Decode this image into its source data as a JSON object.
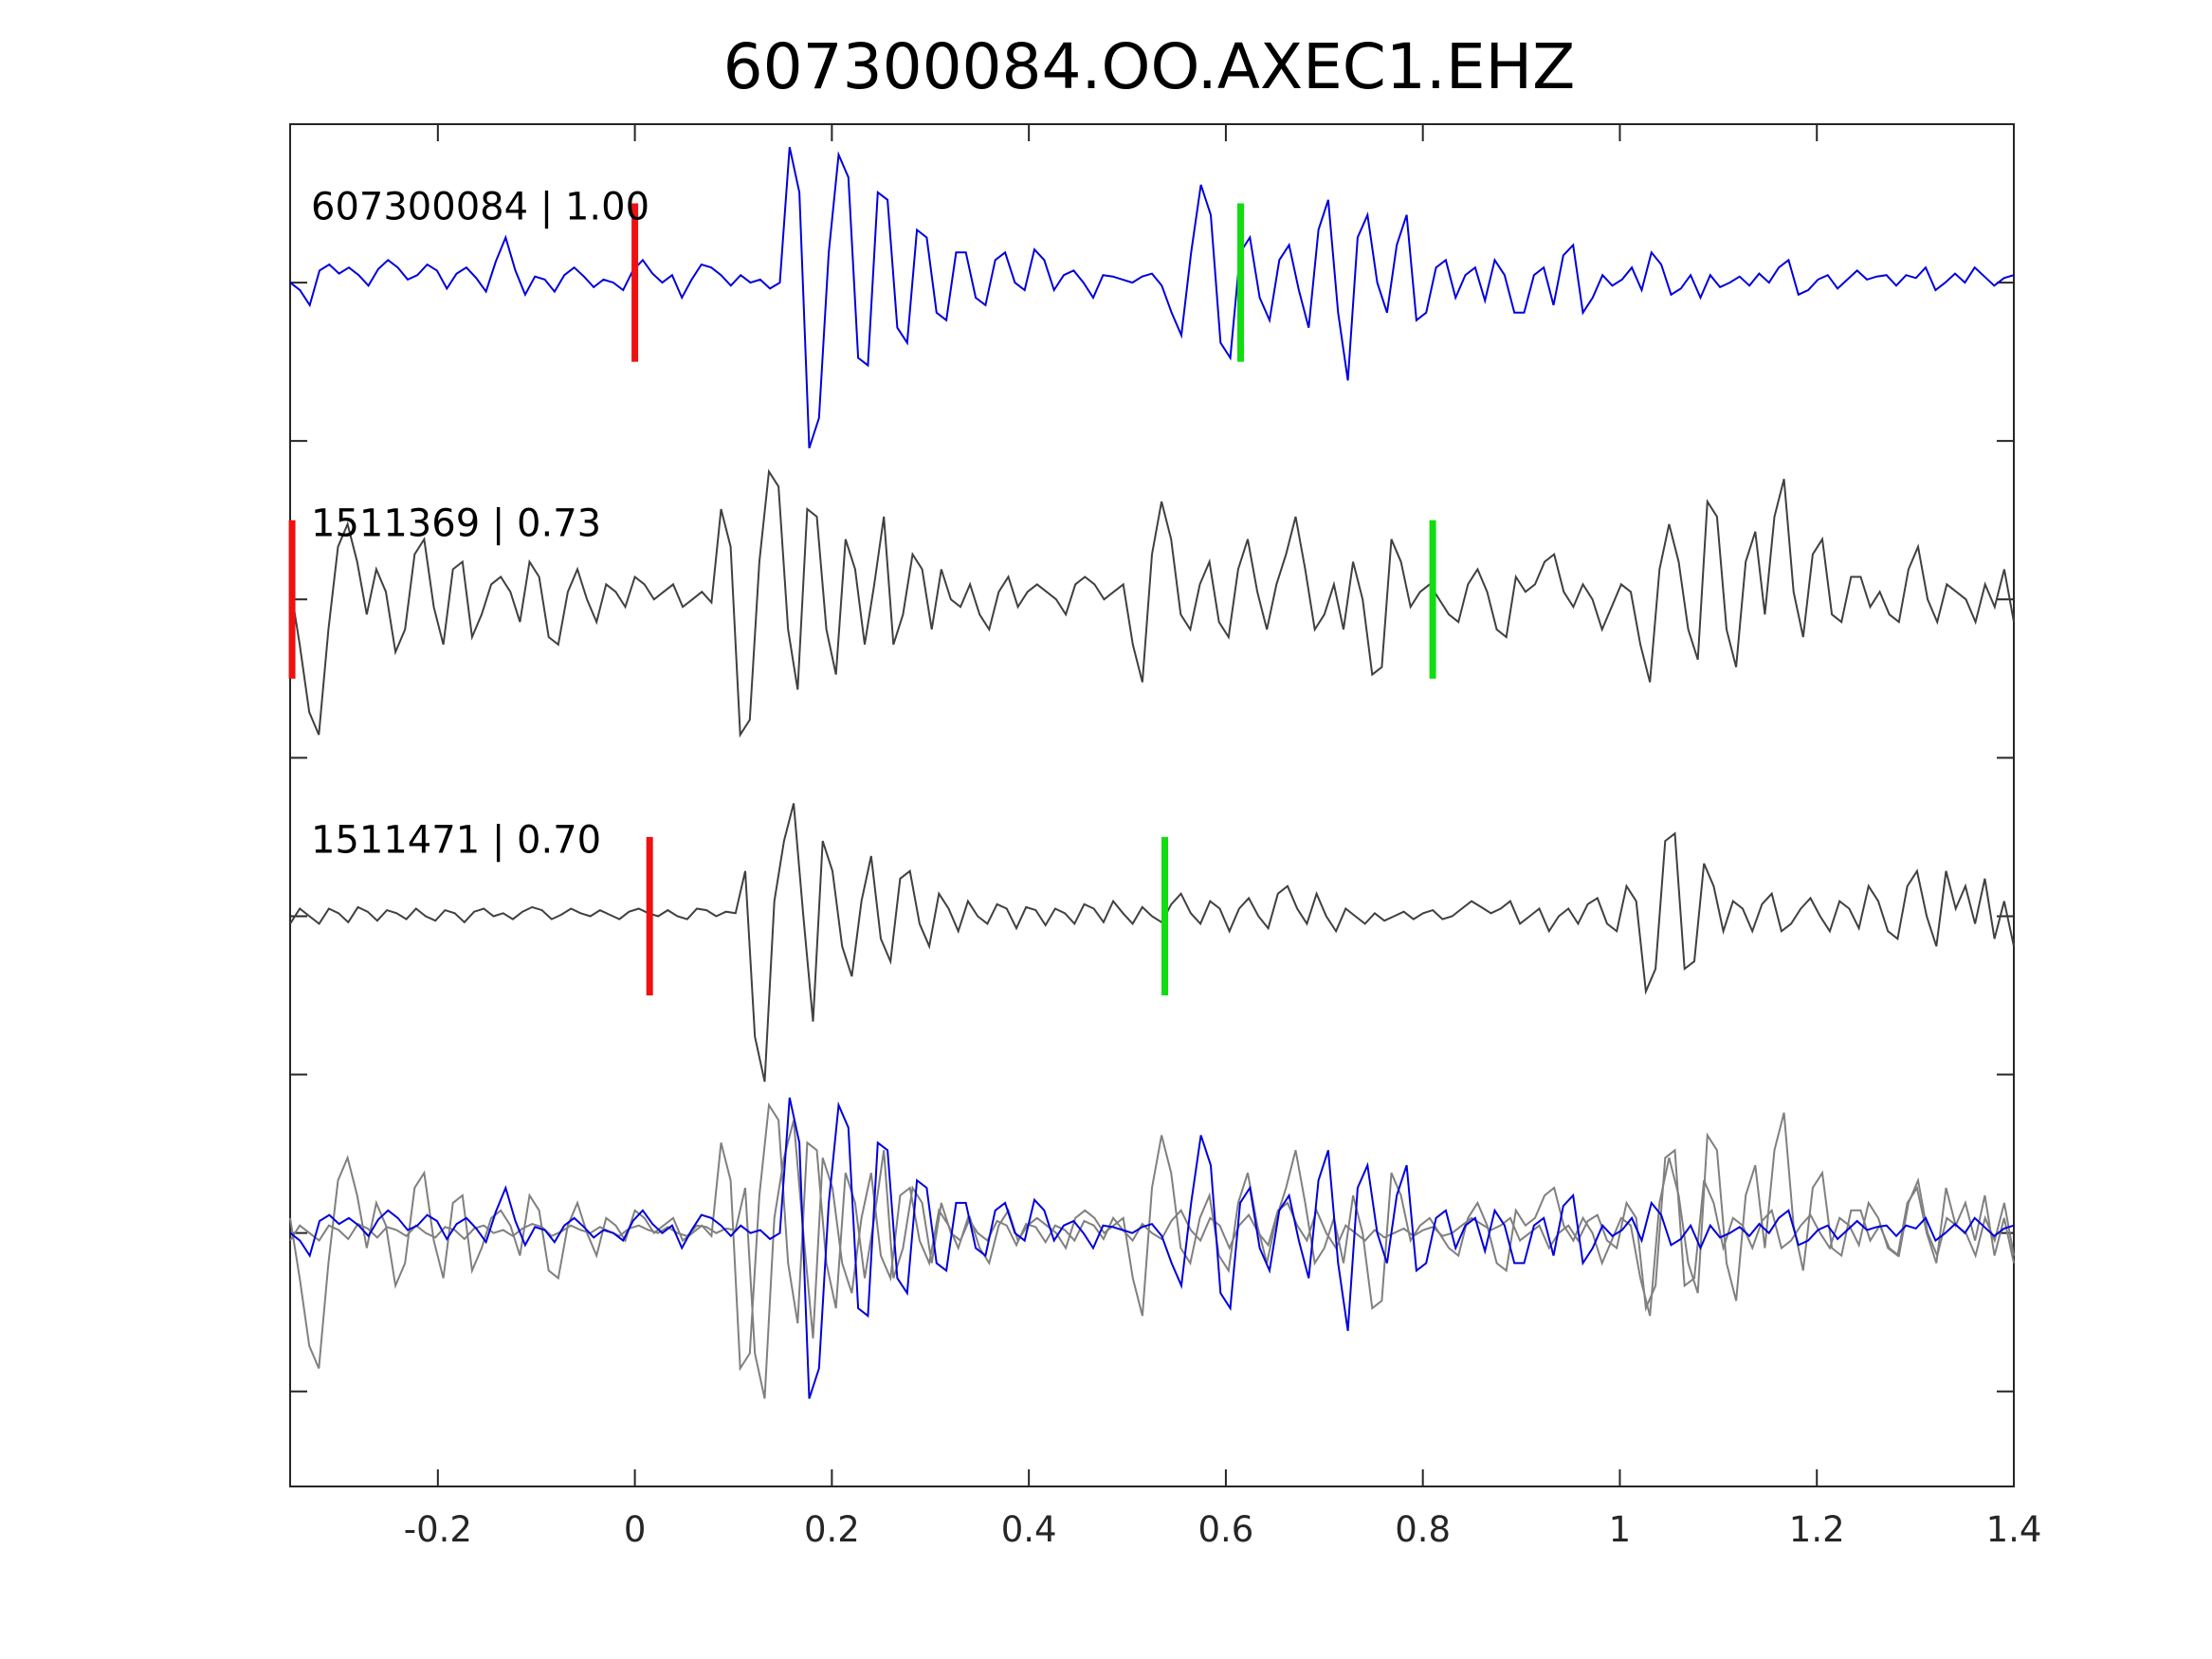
{
  "chart_data": {
    "type": "line",
    "title": "607300084.OO.AXEC1.EHZ",
    "xlabel": "",
    "ylabel": "",
    "xlim": [
      -0.35,
      1.4
    ],
    "xticks": [
      -0.2,
      0,
      0.2,
      0.4,
      0.6,
      0.8,
      1,
      1.2,
      1.4
    ],
    "xtick_labels": [
      "-0.2",
      "0",
      "0.2",
      "0.4",
      "0.6",
      "0.8",
      "1",
      "1.2",
      "1.4"
    ],
    "grid": false,
    "legend": "none",
    "traces": [
      {
        "id": "607300084",
        "label": "607300084 | 1.00",
        "correlation": 1.0,
        "color": "#0000dd",
        "p_pick": 0.0,
        "s_pick": 0.615,
        "offset": 0,
        "samples": [
          0.0,
          -0.05,
          -0.15,
          0.08,
          0.12,
          0.06,
          0.1,
          0.05,
          -0.02,
          0.09,
          0.15,
          0.1,
          0.02,
          0.05,
          0.12,
          0.08,
          -0.04,
          0.06,
          0.1,
          0.03,
          -0.06,
          0.14,
          0.3,
          0.08,
          -0.08,
          0.04,
          0.02,
          -0.06,
          0.05,
          0.1,
          0.04,
          -0.03,
          0.02,
          0.0,
          -0.05,
          0.08,
          0.15,
          0.06,
          0.0,
          0.05,
          -0.1,
          0.02,
          0.12,
          0.1,
          0.05,
          -0.02,
          0.05,
          0.0,
          0.02,
          -0.04,
          0.0,
          0.9,
          0.6,
          -1.1,
          -0.9,
          0.2,
          0.85,
          0.7,
          -0.5,
          -0.55,
          0.6,
          0.55,
          -0.3,
          -0.4,
          0.35,
          0.3,
          -0.2,
          -0.25,
          0.2,
          0.2,
          -0.1,
          -0.15,
          0.15,
          0.2,
          0.0,
          -0.05,
          0.22,
          0.15,
          -0.05,
          0.05,
          0.08,
          0.0,
          -0.1,
          0.05,
          0.04,
          0.02,
          0.0,
          0.04,
          0.06,
          -0.02,
          -0.2,
          -0.35,
          0.2,
          0.65,
          0.45,
          -0.4,
          -0.5,
          0.2,
          0.3,
          -0.1,
          -0.25,
          0.15,
          0.25,
          -0.05,
          -0.3,
          0.35,
          0.55,
          -0.2,
          -0.65,
          0.3,
          0.45,
          0.0,
          -0.2,
          0.25,
          0.45,
          -0.25,
          -0.2,
          0.1,
          0.15,
          -0.1,
          0.05,
          0.1,
          -0.12,
          0.15,
          0.05,
          -0.2,
          -0.2,
          0.05,
          0.1,
          -0.15,
          0.18,
          0.25,
          -0.2,
          -0.1,
          0.05,
          -0.02,
          0.02,
          0.1,
          -0.05,
          0.2,
          0.12,
          -0.08,
          -0.04,
          0.05,
          -0.1,
          0.05,
          -0.03,
          0.0,
          0.04,
          -0.02,
          0.06,
          0.0,
          0.1,
          0.15,
          -0.08,
          -0.05,
          0.02,
          0.05,
          -0.04,
          0.02,
          0.08,
          0.02,
          0.04,
          0.05,
          -0.02,
          0.05,
          0.03,
          0.1,
          -0.05,
          0.0,
          0.06,
          0.0,
          0.1,
          0.04,
          -0.02,
          0.03,
          0.05
        ]
      },
      {
        "id": "1511369",
        "label": "1511369 | 0.73",
        "correlation": 0.73,
        "color": "#404040",
        "p_pick": -0.348,
        "s_pick": 0.81,
        "offset": -2,
        "samples": [
          0.1,
          -0.3,
          -0.75,
          -0.9,
          -0.2,
          0.35,
          0.5,
          0.25,
          -0.1,
          0.2,
          0.05,
          -0.35,
          -0.2,
          0.3,
          0.4,
          -0.05,
          -0.3,
          0.2,
          0.25,
          -0.25,
          -0.1,
          0.1,
          0.15,
          0.05,
          -0.15,
          0.25,
          0.15,
          -0.25,
          -0.3,
          0.05,
          0.2,
          0.0,
          -0.15,
          0.1,
          0.05,
          -0.05,
          0.15,
          0.1,
          0.0,
          0.05,
          0.1,
          -0.05,
          0.0,
          0.05,
          -0.02,
          0.6,
          0.35,
          -0.9,
          -0.8,
          0.25,
          0.85,
          0.75,
          -0.2,
          -0.6,
          0.6,
          0.55,
          -0.2,
          -0.5,
          0.4,
          0.2,
          -0.3,
          0.1,
          0.55,
          -0.3,
          -0.1,
          0.3,
          0.2,
          -0.2,
          0.2,
          0.0,
          -0.05,
          0.1,
          -0.1,
          -0.2,
          0.05,
          0.15,
          -0.05,
          0.05,
          0.1,
          0.05,
          0.0,
          -0.1,
          0.1,
          0.15,
          0.1,
          0.0,
          0.05,
          0.1,
          -0.3,
          -0.55,
          0.3,
          0.65,
          0.4,
          -0.1,
          -0.2,
          0.1,
          0.25,
          -0.15,
          -0.25,
          0.2,
          0.4,
          0.05,
          -0.2,
          0.1,
          0.3,
          0.55,
          0.2,
          -0.2,
          -0.1,
          0.1,
          -0.2,
          0.25,
          0.0,
          -0.5,
          -0.45,
          0.4,
          0.25,
          -0.05,
          0.05,
          0.1,
          0.0,
          -0.1,
          -0.15,
          0.1,
          0.2,
          0.05,
          -0.2,
          -0.25,
          0.15,
          0.05,
          0.1,
          0.25,
          0.3,
          0.05,
          -0.05,
          0.1,
          0.0,
          -0.2,
          -0.05,
          0.1,
          0.05,
          -0.3,
          -0.55,
          0.2,
          0.5,
          0.25,
          -0.2,
          -0.4,
          0.65,
          0.55,
          -0.2,
          -0.45,
          0.25,
          0.45,
          -0.1,
          0.55,
          0.8,
          0.05,
          -0.25,
          0.3,
          0.4,
          -0.1,
          -0.15,
          0.15,
          0.15,
          -0.05,
          0.05,
          -0.1,
          -0.15,
          0.2,
          0.35,
          0.0,
          -0.15,
          0.1,
          0.05,
          0.0,
          -0.15,
          0.1,
          -0.05,
          0.2,
          -0.15
        ]
      },
      {
        "id": "1511471",
        "label": "1511471 | 0.70",
        "correlation": 0.7,
        "color": "#404040",
        "p_pick": 0.015,
        "s_pick": 0.538,
        "offset": -4,
        "samples": [
          -0.05,
          0.05,
          0.0,
          -0.05,
          0.05,
          0.02,
          -0.04,
          0.06,
          0.03,
          -0.03,
          0.04,
          0.02,
          -0.02,
          0.05,
          0.0,
          -0.03,
          0.04,
          0.02,
          -0.04,
          0.03,
          0.05,
          0.0,
          0.02,
          -0.02,
          0.03,
          0.06,
          0.04,
          -0.02,
          0.01,
          0.05,
          0.02,
          0.0,
          0.04,
          0.01,
          -0.02,
          0.03,
          0.05,
          0.02,
          0.0,
          0.04,
          0.0,
          -0.02,
          0.05,
          0.04,
          0.0,
          0.03,
          0.02,
          0.3,
          -0.8,
          -1.1,
          0.1,
          0.5,
          0.75,
          0.0,
          -0.7,
          0.5,
          0.3,
          -0.2,
          -0.4,
          0.1,
          0.4,
          -0.15,
          -0.3,
          0.25,
          0.3,
          -0.05,
          -0.2,
          0.15,
          0.05,
          -0.1,
          0.1,
          0.0,
          -0.05,
          0.08,
          0.05,
          -0.08,
          0.06,
          0.04,
          -0.06,
          0.05,
          0.02,
          -0.05,
          0.08,
          0.05,
          -0.04,
          0.1,
          0.02,
          -0.05,
          0.06,
          0.0,
          -0.04,
          0.08,
          0.15,
          0.02,
          -0.05,
          0.1,
          0.05,
          -0.1,
          0.05,
          0.12,
          0.0,
          -0.08,
          0.15,
          0.2,
          0.05,
          -0.05,
          0.15,
          0.0,
          -0.1,
          0.05,
          0.0,
          -0.05,
          0.02,
          -0.03,
          0.0,
          0.03,
          -0.02,
          0.02,
          0.04,
          -0.02,
          0.0,
          0.05,
          0.1,
          0.06,
          0.02,
          0.05,
          0.1,
          -0.05,
          0.0,
          0.05,
          -0.1,
          0.0,
          0.05,
          -0.05,
          0.08,
          0.12,
          -0.05,
          -0.1,
          0.2,
          0.1,
          -0.5,
          -0.35,
          0.5,
          0.55,
          -0.35,
          -0.3,
          0.35,
          0.2,
          -0.1,
          0.1,
          0.05,
          -0.1,
          0.08,
          0.15,
          -0.1,
          -0.05,
          0.05,
          0.12,
          0.0,
          -0.1,
          0.1,
          0.05,
          -0.08,
          0.2,
          0.1,
          -0.1,
          -0.15,
          0.2,
          0.3,
          0.0,
          -0.2,
          0.3,
          0.05,
          0.2,
          -0.05,
          0.25,
          -0.15,
          0.1,
          -0.2
        ]
      }
    ]
  }
}
